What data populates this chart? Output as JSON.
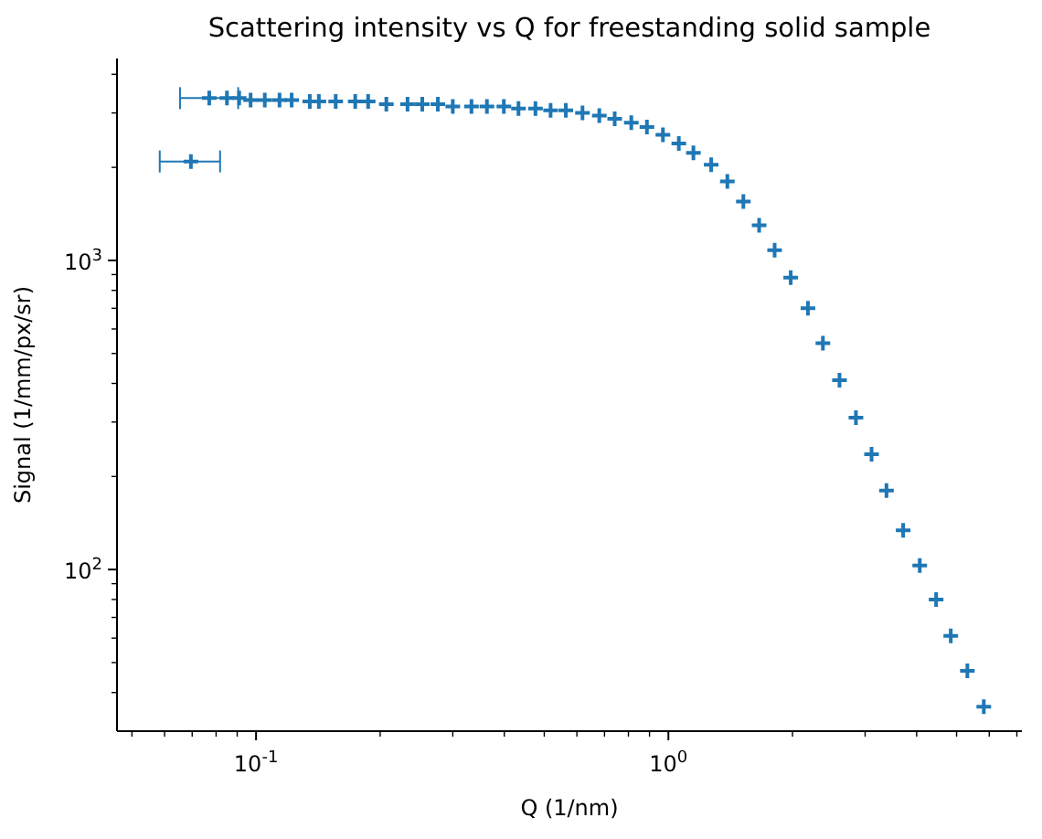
{
  "chart_data": {
    "type": "scatter",
    "title": "Scattering intensity vs Q for freestanding solid sample",
    "xlabel": "Q (1/nm)",
    "ylabel": "Signal (1/mm/px/sr)",
    "log": "xy",
    "marker": "cross",
    "xlim": [
      0.046,
      7.2
    ],
    "ylim": [
      30,
      4500
    ],
    "xticks": [
      {
        "value": 0.05,
        "label": null
      },
      {
        "value": 0.06,
        "label": null
      },
      {
        "value": 0.07,
        "label": null
      },
      {
        "value": 0.08,
        "label": null
      },
      {
        "value": 0.09,
        "label": null
      },
      {
        "value": 0.1,
        "label": "10$^{-1}$"
      },
      {
        "value": 0.2,
        "label": null
      },
      {
        "value": 0.3,
        "label": null
      },
      {
        "value": 0.4,
        "label": null
      },
      {
        "value": 0.5,
        "label": null
      },
      {
        "value": 0.6,
        "label": null
      },
      {
        "value": 0.7,
        "label": null
      },
      {
        "value": 0.8,
        "label": null
      },
      {
        "value": 0.9,
        "label": null
      },
      {
        "value": 1,
        "label": "10$^{0}$"
      },
      {
        "value": 2,
        "label": null
      },
      {
        "value": 3,
        "label": null
      },
      {
        "value": 4,
        "label": null
      },
      {
        "value": 5,
        "label": null
      },
      {
        "value": 6,
        "label": null
      },
      {
        "value": 7,
        "label": null
      }
    ],
    "yticks": [
      {
        "value": 40,
        "label": null
      },
      {
        "value": 50,
        "label": null
      },
      {
        "value": 60,
        "label": null
      },
      {
        "value": 70,
        "label": null
      },
      {
        "value": 80,
        "label": null
      },
      {
        "value": 90,
        "label": null
      },
      {
        "value": 100,
        "label": "10$^{2}$"
      },
      {
        "value": 200,
        "label": null
      },
      {
        "value": 300,
        "label": null
      },
      {
        "value": 400,
        "label": null
      },
      {
        "value": 500,
        "label": null
      },
      {
        "value": 600,
        "label": null
      },
      {
        "value": 700,
        "label": null
      },
      {
        "value": 800,
        "label": null
      },
      {
        "value": 900,
        "label": null
      },
      {
        "value": 1000,
        "label": "10$^{3}$"
      },
      {
        "value": 2000,
        "label": null
      },
      {
        "value": 3000,
        "label": null
      },
      {
        "value": 4000,
        "label": null
      }
    ],
    "series": [
      {
        "color": "#1f77b4",
        "x": [
          0.0695
        ],
        "values": [
          2090
        ],
        "xerrors": [
          [
            0.0584,
            0.0818
          ]
        ]
      },
      {
        "color": "#1f77b4",
        "x": [
          0.077,
          0.085,
          0.091,
          0.097,
          0.105,
          0.114,
          0.122,
          0.135,
          0.142,
          0.156,
          0.174,
          0.187,
          0.207,
          0.233,
          0.253,
          0.276,
          0.3,
          0.333,
          0.363,
          0.399,
          0.433,
          0.476,
          0.518,
          0.564,
          0.619,
          0.68,
          0.741,
          0.813,
          0.887,
          0.97,
          1.06,
          1.15,
          1.27,
          1.39,
          1.52,
          1.66,
          1.81,
          1.98,
          2.18,
          2.37,
          2.6,
          2.85,
          3.11,
          3.38,
          3.71,
          4.07,
          4.46,
          4.84,
          5.31,
          5.82
        ],
        "values": [
          3350,
          3350,
          3350,
          3300,
          3300,
          3300,
          3300,
          3270,
          3270,
          3270,
          3270,
          3270,
          3200,
          3200,
          3200,
          3200,
          3150,
          3150,
          3150,
          3150,
          3100,
          3100,
          3060,
          3060,
          3000,
          2940,
          2870,
          2790,
          2700,
          2550,
          2390,
          2230,
          2040,
          1800,
          1550,
          1300,
          1080,
          880,
          700,
          540,
          410,
          310,
          236,
          180,
          134,
          103,
          80,
          61,
          47,
          36
        ],
        "xerrors": [
          [
            0.0654,
            0.0905
          ],
          null,
          null,
          null,
          null,
          null,
          null,
          null,
          null,
          null,
          null,
          null,
          null,
          null,
          null,
          null,
          null,
          null,
          null,
          null,
          null,
          null,
          null,
          null,
          null,
          null,
          null,
          null,
          null,
          null,
          null,
          null,
          null,
          null,
          null,
          null,
          null,
          null,
          null,
          null,
          null,
          null,
          null,
          null,
          null,
          null,
          null,
          null,
          null,
          null
        ]
      }
    ]
  }
}
